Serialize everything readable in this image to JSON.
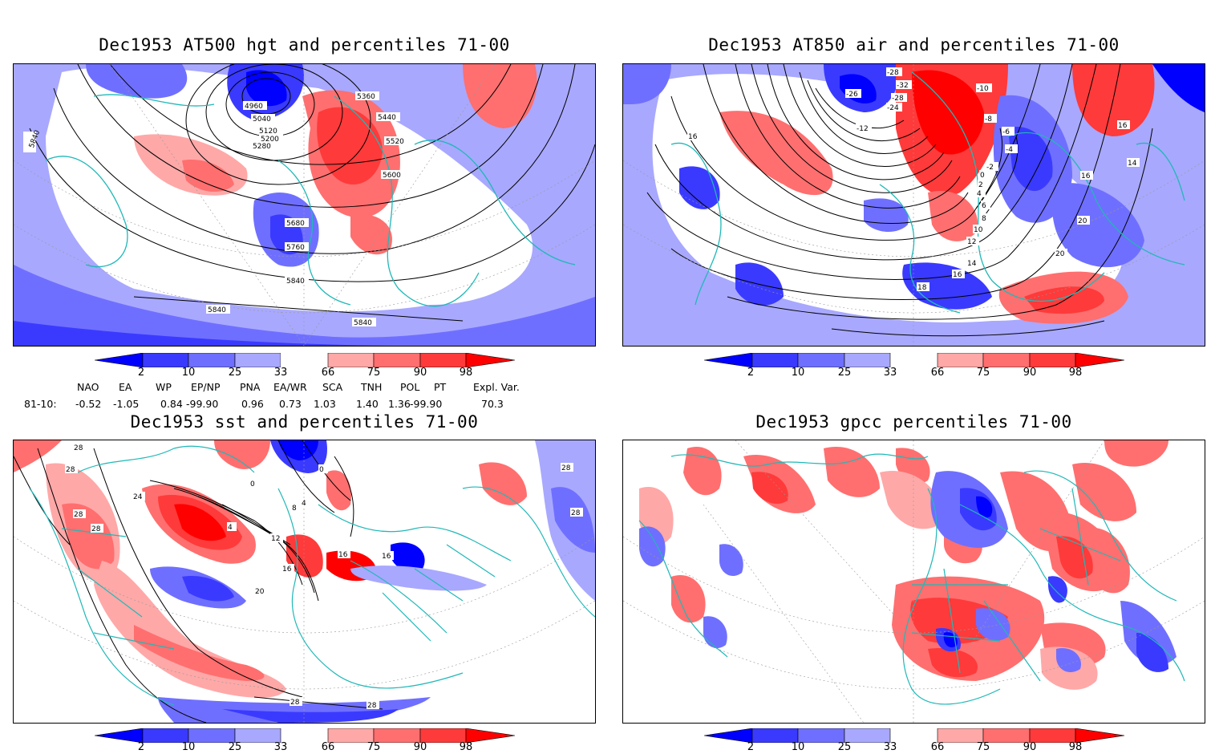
{
  "panels": [
    {
      "id": "p1",
      "title": "Dec1953 AT500 hgt and percentiles 71-00",
      "contour_labels": [
        "4960",
        "5040",
        "5120",
        "5200",
        "5280",
        "5360",
        "5440",
        "5520",
        "5600",
        "5680",
        "5760",
        "5840",
        "5840",
        "5840",
        "5840"
      ]
    },
    {
      "id": "p2",
      "title": "Dec1953 AT850 air and percentiles 71-00",
      "contour_labels": [
        "-28",
        "-26",
        "-32",
        "-28",
        "-24",
        "-12",
        "-10",
        "-8",
        "-6",
        "-4",
        "-2",
        "0",
        "2",
        "4",
        "6",
        "8",
        "10",
        "12",
        "14",
        "16",
        "16",
        "16",
        "16",
        "18",
        "20",
        "20",
        "14"
      ]
    },
    {
      "id": "p3",
      "title": "Dec1953 sst and percentiles 71-00",
      "contour_labels": [
        "28",
        "28",
        "28",
        "28",
        "24",
        "0",
        "0",
        "4",
        "4",
        "8",
        "12",
        "16",
        "16",
        "16",
        "20",
        "28",
        "28",
        "28",
        "28"
      ]
    },
    {
      "id": "p4",
      "title": "Dec1953 gpcc percentiles 71-00",
      "contour_labels": []
    }
  ],
  "colorbar": {
    "labels": [
      "2",
      "10",
      "25",
      "33",
      "66",
      "75",
      "90",
      "98"
    ],
    "colors": {
      "blue_dark": "#0000ff",
      "blue_mid": "#3a3aff",
      "blue_light": "#6f6fff",
      "blue_pale": "#a8a8ff",
      "white": "#ffffff",
      "red_pale": "#ffa8a8",
      "red_light": "#ff6f6f",
      "red_mid": "#ff3a3a",
      "red_dark": "#ff0000"
    }
  },
  "indices": {
    "headers": [
      "NAO",
      "EA",
      "WP",
      "EP/NP",
      "PNA",
      "EA/WR",
      "SCA",
      "TNH",
      "POL",
      "PT",
      "Expl. Var."
    ],
    "row_label": "81-10:",
    "values": [
      "-0.52",
      "-1.05",
      "0.84",
      "-99.90",
      "0.96",
      "0.73",
      "1.03",
      "1.40",
      "1.36",
      "-99.90",
      "70.3"
    ]
  },
  "style": {
    "coast_color": "#20b8b8",
    "contour_color": "#000000",
    "grid_color": "#999999"
  }
}
